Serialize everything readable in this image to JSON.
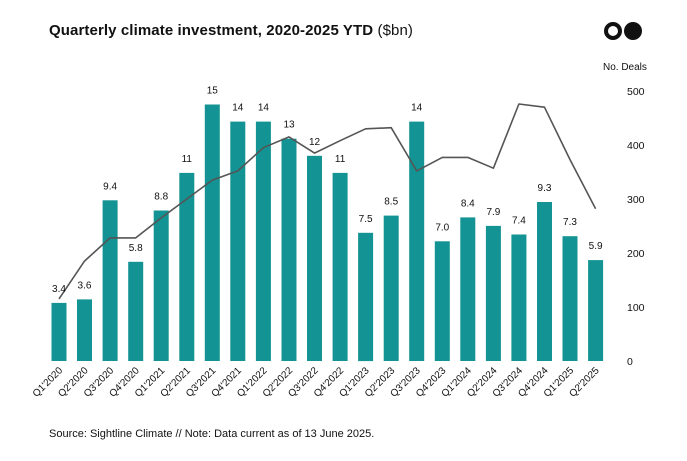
{
  "header": {
    "title_bold": "Quarterly climate investment, 2020-2025 YTD",
    "title_unit": "($bn)",
    "logo_icon": "two-dot-logo-icon"
  },
  "footer": {
    "source": "Source: Sightline Climate  //  Note: Data current as of 13 June 2025."
  },
  "colors": {
    "bar": "#139393",
    "line": "#555555",
    "text": "#111111"
  },
  "chart_data": {
    "type": "bar",
    "title": "Quarterly climate investment, 2020-2025 YTD ($bn)",
    "categories": [
      "Q1'2020",
      "Q2'2020",
      "Q3'2020",
      "Q4'2020",
      "Q1'2021",
      "Q2'2021",
      "Q3'2021",
      "Q4'2021",
      "Q1'2022",
      "Q2'2022",
      "Q3'2022",
      "Q4'2022",
      "Q1'2023",
      "Q2'2023",
      "Q3'2023",
      "Q4'2023",
      "Q1'2024",
      "Q2'2024",
      "Q3'2024",
      "Q4'2024",
      "Q1'2025",
      "Q2'2025"
    ],
    "series": [
      {
        "name": "Investment ($bn)",
        "type": "bar",
        "axis": "left",
        "values": [
          3.4,
          3.6,
          9.4,
          5.8,
          8.8,
          11,
          15,
          14,
          14,
          13,
          12,
          11,
          7.5,
          8.5,
          14,
          7.0,
          8.4,
          7.9,
          7.4,
          9.3,
          7.3,
          5.9
        ],
        "labels": [
          "3.4",
          "3.6",
          "9.4",
          "5.8",
          "8.8",
          "11",
          "15",
          "14",
          "14",
          "13",
          "12",
          "11",
          "7.5",
          "8.5",
          "14",
          "7.0",
          "8.4",
          "7.9",
          "7.4",
          "9.3",
          "7.3",
          "5.9"
        ]
      },
      {
        "name": "No. Deals",
        "type": "line",
        "axis": "right",
        "values": [
          115,
          185,
          228,
          228,
          265,
          300,
          335,
          352,
          395,
          415,
          385,
          408,
          430,
          432,
          352,
          377,
          377,
          357,
          476,
          470,
          373,
          282
        ]
      }
    ],
    "y2_title": "No. Deals",
    "y2_ticks": [
      "0",
      "100",
      "200",
      "300",
      "400",
      "500"
    ],
    "y2lim": [
      0,
      500
    ],
    "ylim": [
      0,
      16.8
    ]
  }
}
